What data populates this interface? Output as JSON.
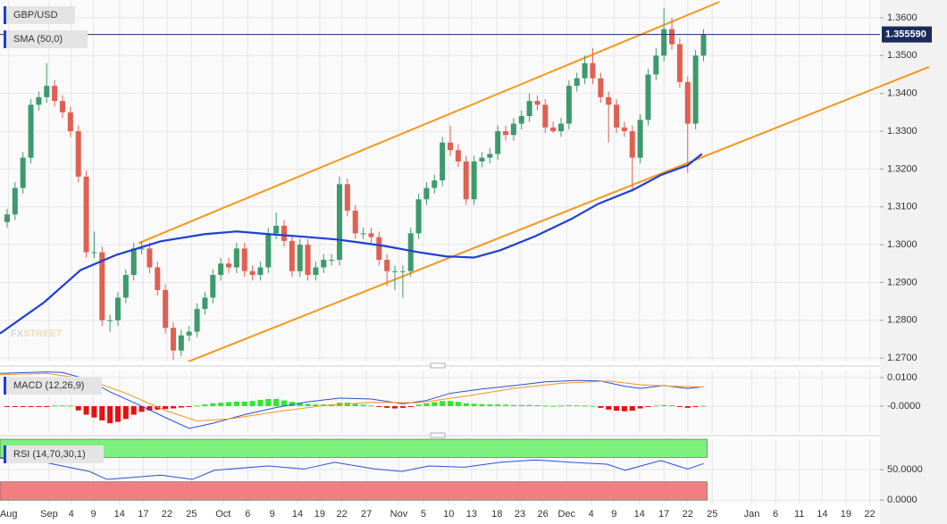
{
  "chart_data": [
    {
      "type": "candlestick",
      "title": "GBP/USD",
      "xlim": [
        -0.9,
        110.3
      ],
      "xticks": [
        {
          "value": 0.2,
          "label": "Aug"
        },
        {
          "value": 5.3,
          "label": "Sep"
        },
        {
          "value": 8.1,
          "label": "4"
        },
        {
          "value": 10.9,
          "label": "9"
        },
        {
          "value": 14.2,
          "label": "14"
        },
        {
          "value": 17.2,
          "label": "17"
        },
        {
          "value": 20.2,
          "label": "22"
        },
        {
          "value": 23.3,
          "label": "25"
        },
        {
          "value": 27.3,
          "label": "Oct"
        },
        {
          "value": 30.4,
          "label": "6"
        },
        {
          "value": 33.5,
          "label": "9"
        },
        {
          "value": 36.7,
          "label": "14"
        },
        {
          "value": 39.5,
          "label": "19"
        },
        {
          "value": 42.3,
          "label": "22"
        },
        {
          "value": 45.4,
          "label": "27"
        },
        {
          "value": 49.5,
          "label": "Nov"
        },
        {
          "value": 52.6,
          "label": "5"
        },
        {
          "value": 55.8,
          "label": "10"
        },
        {
          "value": 58.7,
          "label": "13"
        },
        {
          "value": 61.9,
          "label": "18"
        },
        {
          "value": 64.8,
          "label": "23"
        },
        {
          "value": 67.7,
          "label": "26"
        },
        {
          "value": 70.7,
          "label": "Dec"
        },
        {
          "value": 73.8,
          "label": "4"
        },
        {
          "value": 76.7,
          "label": "9"
        },
        {
          "value": 79.9,
          "label": "14"
        },
        {
          "value": 83,
          "label": "17"
        },
        {
          "value": 86,
          "label": "22"
        },
        {
          "value": 89.1,
          "label": "25"
        },
        {
          "value": 94.1,
          "label": "Jan"
        },
        {
          "value": 97.1,
          "label": "6"
        },
        {
          "value": 100.1,
          "label": "11"
        },
        {
          "value": 103,
          "label": "14"
        },
        {
          "value": 106,
          "label": "19"
        },
        {
          "value": 109,
          "label": "22"
        }
      ],
      "ylim": [
        1.2691,
        1.3647
      ],
      "yticks": [
        {
          "value": 1.36,
          "label": "1.3600"
        },
        {
          "value": 1.35,
          "label": "1.3500"
        },
        {
          "value": 1.34,
          "label": "1.3400"
        },
        {
          "value": 1.33,
          "label": "1.3300"
        },
        {
          "value": 1.32,
          "label": "1.3200"
        },
        {
          "value": 1.31,
          "label": "1.3100"
        },
        {
          "value": 1.3,
          "label": "1.3000"
        },
        {
          "value": 1.29,
          "label": "1.2900"
        },
        {
          "value": 1.28,
          "label": "1.2800"
        },
        {
          "value": 1.27,
          "label": "1.2700"
        }
      ],
      "up_color": "#3d9a6c",
      "down_color": "#e06052",
      "open": [
        1.306,
        1.308,
        1.315,
        1.323,
        1.337,
        1.339,
        1.342,
        1.338,
        1.335,
        1.33,
        1.318,
        1.298,
        1.298,
        1.28,
        1.28,
        1.286,
        1.292,
        1.299,
        1.299,
        1.294,
        1.288,
        1.278,
        1.272,
        1.276,
        1.277,
        1.283,
        1.286,
        1.292,
        1.295,
        1.294,
        1.299,
        1.293,
        1.292,
        1.294,
        1.303,
        1.305,
        1.301,
        1.293,
        1.3,
        1.292,
        1.294,
        1.296,
        1.296,
        1.316,
        1.309,
        1.303,
        1.303,
        1.302,
        1.296,
        1.293,
        1.293,
        1.293,
        1.303,
        1.312,
        1.315,
        1.317,
        1.327,
        1.325,
        1.322,
        1.312,
        1.322,
        1.323,
        1.324,
        1.33,
        1.329,
        1.332,
        1.334,
        1.338,
        1.337,
        1.331,
        1.33,
        1.332,
        1.342,
        1.344,
        1.348,
        1.344,
        1.339,
        1.337,
        1.331,
        1.33,
        1.323,
        1.333,
        1.345,
        1.35,
        1.357,
        1.353,
        1.343,
        1.332,
        1.35
      ],
      "high": [
        1.3095,
        1.3165,
        1.3245,
        1.3385,
        1.3405,
        1.348,
        1.3435,
        1.3395,
        1.3365,
        1.3315,
        1.3195,
        1.3035,
        1.2995,
        1.2815,
        1.2875,
        1.2935,
        1.3005,
        1.301,
        1.3005,
        1.2955,
        1.2895,
        1.2795,
        1.2775,
        1.2785,
        1.2845,
        1.2875,
        1.2935,
        1.2965,
        1.2965,
        1.3005,
        1.3005,
        1.2945,
        1.2955,
        1.3045,
        1.3085,
        1.3065,
        1.3025,
        1.3015,
        1.3015,
        1.2955,
        1.2975,
        1.2975,
        1.318,
        1.3175,
        1.3105,
        1.3045,
        1.3045,
        1.3035,
        1.2975,
        1.2945,
        1.2945,
        1.3045,
        1.3135,
        1.3165,
        1.3185,
        1.3285,
        1.3315,
        1.3265,
        1.3235,
        1.3235,
        1.3245,
        1.3255,
        1.3315,
        1.3315,
        1.3335,
        1.3355,
        1.34,
        1.3395,
        1.3385,
        1.3325,
        1.3335,
        1.3435,
        1.3455,
        1.35,
        1.352,
        1.3455,
        1.3405,
        1.3385,
        1.3325,
        1.3315,
        1.3345,
        1.3465,
        1.352,
        1.3625,
        1.36,
        1.3545,
        1.3445,
        1.3515,
        1.357
      ],
      "low": [
        1.3045,
        1.3065,
        1.3135,
        1.3215,
        1.3355,
        1.3375,
        1.3365,
        1.3335,
        1.3285,
        1.3165,
        1.2965,
        1.2965,
        1.2785,
        1.277,
        1.2785,
        1.2845,
        1.2905,
        1.2975,
        1.2925,
        1.2865,
        1.2765,
        1.2695,
        1.2705,
        1.2745,
        1.2755,
        1.2815,
        1.2845,
        1.2905,
        1.2925,
        1.2925,
        1.2915,
        1.2905,
        1.2905,
        1.2925,
        1.3015,
        1.2995,
        1.2915,
        1.2915,
        1.2905,
        1.2905,
        1.2925,
        1.2945,
        1.2945,
        1.3075,
        1.3015,
        1.3015,
        1.3005,
        1.2945,
        1.289,
        1.288,
        1.286,
        1.2915,
        1.3015,
        1.3105,
        1.3135,
        1.3155,
        1.3235,
        1.3205,
        1.3105,
        1.3105,
        1.3205,
        1.3215,
        1.3225,
        1.3275,
        1.3275,
        1.3305,
        1.3325,
        1.3355,
        1.3295,
        1.3295,
        1.3285,
        1.3305,
        1.3405,
        1.3425,
        1.3425,
        1.3375,
        1.327,
        1.3295,
        1.3285,
        1.314,
        1.3215,
        1.3315,
        1.3435,
        1.3485,
        1.3515,
        1.3415,
        1.319,
        1.3305,
        1.3485
      ],
      "close": [
        1.308,
        1.315,
        1.323,
        1.337,
        1.339,
        1.342,
        1.338,
        1.335,
        1.33,
        1.318,
        1.298,
        1.298,
        1.28,
        1.28,
        1.286,
        1.292,
        1.299,
        1.299,
        1.294,
        1.288,
        1.278,
        1.272,
        1.276,
        1.277,
        1.283,
        1.286,
        1.292,
        1.295,
        1.294,
        1.299,
        1.293,
        1.292,
        1.294,
        1.303,
        1.305,
        1.301,
        1.293,
        1.3,
        1.292,
        1.294,
        1.296,
        1.296,
        1.316,
        1.309,
        1.303,
        1.303,
        1.302,
        1.296,
        1.293,
        1.293,
        1.293,
        1.303,
        1.312,
        1.315,
        1.317,
        1.327,
        1.325,
        1.322,
        1.312,
        1.322,
        1.323,
        1.324,
        1.33,
        1.329,
        1.332,
        1.334,
        1.338,
        1.337,
        1.331,
        1.33,
        1.332,
        1.342,
        1.344,
        1.348,
        1.344,
        1.339,
        1.337,
        1.331,
        1.33,
        1.323,
        1.333,
        1.345,
        1.35,
        1.357,
        1.353,
        1.343,
        1.332,
        1.35,
        1.3556
      ],
      "sma": {
        "name": "SMA (50,0)",
        "color": "#1f3fd6",
        "x": [
          -0.9,
          4.7,
          9.3,
          13.8,
          19.4,
          25,
          29,
          33,
          37.5,
          42,
          47.6,
          52,
          55.5,
          59,
          62.3,
          66.8,
          71.3,
          74.7,
          79.2,
          82.6,
          86,
          87.8
        ],
        "values": [
          1.2765,
          1.2848,
          1.2933,
          1.2973,
          1.3009,
          1.3028,
          1.3035,
          1.3028,
          1.3021,
          1.3013,
          1.2997,
          1.298,
          1.2969,
          1.2966,
          1.2985,
          1.3023,
          1.3068,
          1.3108,
          1.3146,
          1.3184,
          1.321,
          1.324
        ]
      },
      "channel": [
        {
          "color": "#f7961e",
          "x": [
            16.6,
            90
          ],
          "values": [
            1.3004,
            1.3642
          ]
        },
        {
          "color": "#f7961e",
          "x": [
            22.8,
            116.5
          ],
          "values": [
            1.269,
            1.347
          ]
        }
      ],
      "current_price": {
        "value": 1.35559,
        "label": "1.355590"
      },
      "watermark": [
        "FX",
        "STREET"
      ]
    },
    {
      "type": "macd",
      "title": "MACD (12,26,9)",
      "ylim": [
        -0.0094,
        0.0125
      ],
      "yticks": [
        {
          "value": 0.01,
          "label": "0.0100"
        },
        {
          "value": 0,
          "label": "-0.0000"
        }
      ],
      "histogram": {
        "up_color": "#2ee82e",
        "down_color": "#e81010",
        "values": [
          -0.0003,
          -0.0003,
          -0.0003,
          -0.0003,
          -0.0003,
          -0.0003,
          0.0002,
          0.0002,
          0.0002,
          -0.0015,
          -0.003,
          -0.004,
          -0.005,
          -0.006,
          -0.0055,
          -0.0045,
          -0.003,
          -0.002,
          -0.0015,
          -0.0012,
          -0.001,
          -0.0008,
          -0.0005,
          -0.0003,
          0.0002,
          0.0006,
          0.001,
          0.0012,
          0.0014,
          0.0016,
          0.0016,
          0.0018,
          0.0022,
          0.0025,
          0.0025,
          0.002,
          0.0015,
          0.0012,
          0.0008,
          0.0006,
          0.0006,
          0.0006,
          0.0012,
          0.0012,
          0.0008,
          0.0005,
          0.0002,
          -0.0003,
          -0.0006,
          -0.0008,
          -0.0006,
          -0.0002,
          0.0005,
          0.001,
          0.0014,
          0.0018,
          0.0018,
          0.0015,
          0.001,
          0.0008,
          0.0007,
          0.0006,
          0.0006,
          0.0005,
          0.0004,
          0.0004,
          0.0004,
          0.0003,
          0.0002,
          0.0001,
          0.0002,
          0.0003,
          0.0003,
          0.0002,
          0.0001,
          -0.0006,
          -0.0012,
          -0.0016,
          -0.0018,
          -0.0016,
          -0.0008,
          -0.0002,
          0.0002,
          0.0004,
          0.0003,
          -0.0002,
          -0.0006,
          -0.0002,
          0.0001
        ]
      },
      "series": [
        {
          "color": "#2a4fd8",
          "x": [
            -0.9,
            5,
            7,
            10,
            13,
            17,
            20,
            23,
            26,
            30,
            34,
            38,
            42,
            46,
            50,
            53,
            56,
            60,
            64,
            68,
            72,
            75,
            78,
            80,
            83,
            86,
            88
          ],
          "values": [
            0.0115,
            0.012,
            0.0118,
            0.0095,
            0.005,
            0.0,
            -0.004,
            -0.0078,
            -0.006,
            -0.003,
            -0.0005,
            0.0015,
            0.0028,
            0.0025,
            0.0008,
            0.002,
            0.0045,
            0.006,
            0.0072,
            0.0085,
            0.009,
            0.0088,
            0.007,
            0.0062,
            0.0072,
            0.0062,
            0.0068
          ]
        },
        {
          "color": "#f7961e",
          "x": [
            -0.9,
            5,
            10,
            15,
            20,
            24,
            28,
            34,
            40,
            46,
            52,
            58,
            64,
            70,
            76,
            80,
            84,
            88
          ],
          "values": [
            0.011,
            0.0115,
            0.0095,
            0.0045,
            -0.0015,
            -0.0052,
            -0.0045,
            -0.002,
            0.0002,
            0.0013,
            0.0012,
            0.0035,
            0.0062,
            0.008,
            0.0088,
            0.0075,
            0.007,
            0.0067
          ]
        }
      ]
    },
    {
      "type": "rsi",
      "title": "RSI (14,70,30,1)",
      "ylim": [
        -7,
        100
      ],
      "yticks": [
        {
          "value": 50,
          "label": "50.0000"
        },
        {
          "value": 0,
          "label": "0.0000"
        }
      ],
      "bands": [
        {
          "from": 70,
          "to": 100,
          "color": "#7cf07c"
        },
        {
          "from": 0,
          "to": 30,
          "color": "#f27f7f"
        }
      ],
      "series": [
        {
          "color": "#2a4fd8",
          "x": [
            -0.9,
            4.7,
            10.4,
            12.6,
            19.4,
            23.4,
            26.2,
            33,
            37.5,
            41.4,
            46.5,
            49.9,
            53.3,
            57.8,
            62.3,
            66.8,
            71.3,
            75.8,
            78.1,
            82.6,
            86,
            88
          ],
          "values": [
            69,
            62,
            47,
            34,
            41,
            34,
            49,
            56,
            51,
            62,
            51,
            47,
            56,
            54,
            62,
            66,
            62,
            59,
            49,
            65,
            51,
            60
          ]
        }
      ]
    }
  ]
}
